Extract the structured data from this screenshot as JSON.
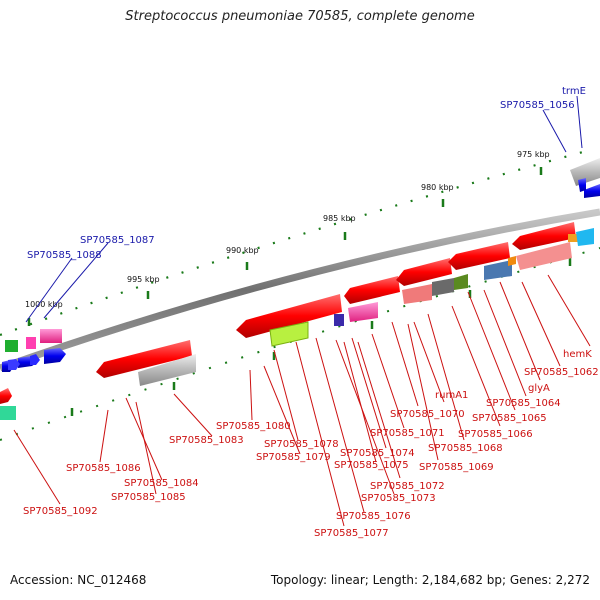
{
  "header": {
    "title": "Streptococcus pneumoniae 70585, complete genome"
  },
  "footer": {
    "accession": "Accession: NC_012468",
    "summary": "Topology: linear; Length: 2,184,682 bp; Genes: 2,272"
  },
  "ruler": {
    "ticks": [
      "975 kbp",
      "980 kbp",
      "985 kbp",
      "990 kbp",
      "995 kbp",
      "1000 kbp"
    ]
  },
  "colors": {
    "backbone": "#808080",
    "tick": "#1a7a1a",
    "forward_label": "#1a1aaa",
    "reverse_label": "#cc1111",
    "forward_gene": "#0000dd",
    "reverse_gene": "#ee0000"
  },
  "labels_forward": [
    "trmE",
    "SP70585_1056",
    "SP70585_1087",
    "SP70585_1088"
  ],
  "labels_reverse": [
    "hemK",
    "SP70585_1062",
    "glyA",
    "SP70585_1064",
    "SP70585_1065",
    "SP70585_1066",
    "SP70585_1068",
    "rumA1",
    "SP70585_1069",
    "SP70585_1070",
    "SP70585_1071",
    "SP70585_1074",
    "SP70585_1075",
    "SP70585_1072",
    "SP70585_1073",
    "SP70585_1076",
    "SP70585_1077",
    "SP70585_1078",
    "SP70585_1079",
    "SP70585_1080",
    "SP70585_1083",
    "SP70585_1084",
    "SP70585_1085",
    "SP70585_1086",
    "SP70585_1092"
  ]
}
